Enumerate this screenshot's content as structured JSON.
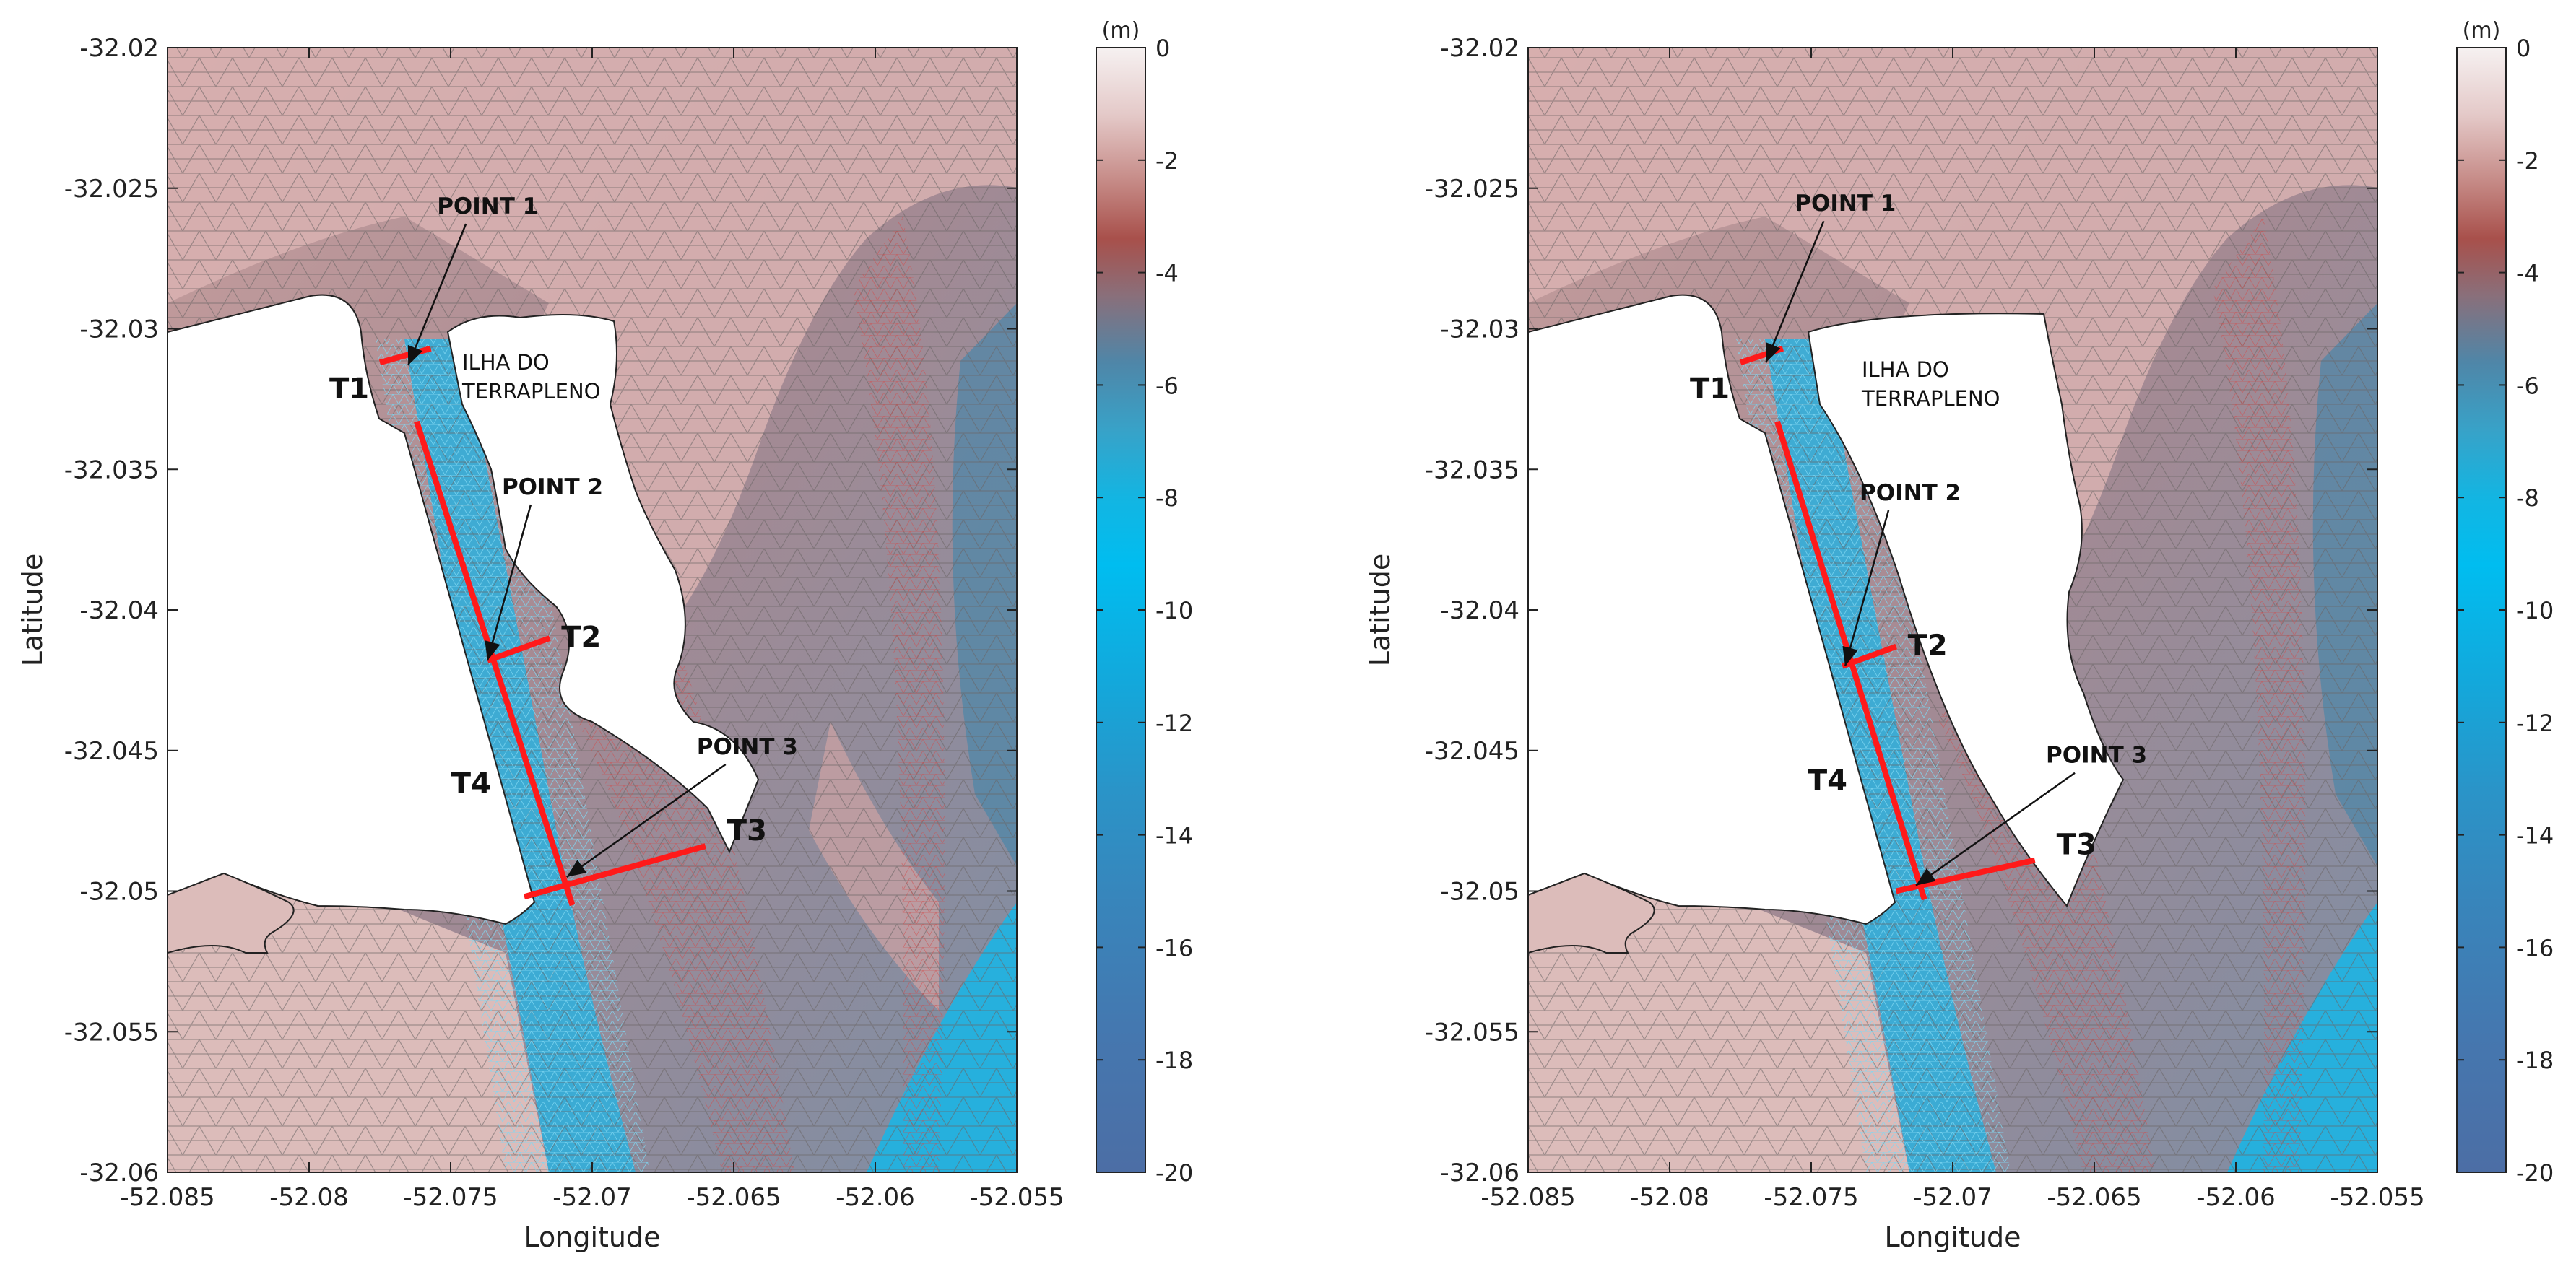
{
  "panels": [
    {
      "id": "left",
      "xlabel": "Longitude",
      "ylabel": "Latitude",
      "island_label": [
        "ILHA DO",
        "TERRAPLENO"
      ],
      "points": [
        {
          "label": "POINT 1",
          "lon": -52.0765,
          "lat": -32.0313
        },
        {
          "label": "POINT 2",
          "lon": -52.0737,
          "lat": -32.0418
        },
        {
          "label": "POINT 3",
          "lon": -52.0709,
          "lat": -32.0495
        }
      ],
      "transects": [
        {
          "label": "T1",
          "lon": [
            -52.0775,
            -52.0757
          ],
          "lat": [
            -32.0312,
            -32.0307
          ]
        },
        {
          "label": "T2",
          "lon": [
            -52.0737,
            -52.0715
          ],
          "lat": [
            -32.0418,
            -32.041
          ]
        },
        {
          "label": "T3",
          "lon": [
            -52.0724,
            -52.066
          ],
          "lat": [
            -32.0502,
            -32.0484
          ]
        },
        {
          "label": "T4",
          "lon": [
            -52.0762,
            -52.0707
          ],
          "lat": [
            -32.0333,
            -32.0505
          ]
        }
      ]
    },
    {
      "id": "right",
      "xlabel": "Longitude",
      "ylabel": "Latitude",
      "island_label": [
        "ILHA DO",
        "TERRAPLENO"
      ],
      "points": [
        {
          "label": "POINT 1",
          "lon": -52.0766,
          "lat": -32.0312
        },
        {
          "label": "POINT 2",
          "lon": -52.0738,
          "lat": -32.042
        },
        {
          "label": "POINT 3",
          "lon": -52.0713,
          "lat": -32.0498
        }
      ],
      "transects": [
        {
          "label": "T1",
          "lon": [
            -52.0775,
            -52.076
          ],
          "lat": [
            -32.0312,
            -32.0307
          ]
        },
        {
          "label": "T2",
          "lon": [
            -52.0739,
            -52.072
          ],
          "lat": [
            -32.042,
            -32.0413
          ]
        },
        {
          "label": "T3",
          "lon": [
            -52.072,
            -52.0671
          ],
          "lat": [
            -32.05,
            -32.0489
          ]
        },
        {
          "label": "T4",
          "lon": [
            -52.0762,
            -52.071
          ],
          "lat": [
            -32.0333,
            -32.0503
          ]
        }
      ]
    }
  ],
  "axes": {
    "xlim": [
      -52.085,
      -52.055
    ],
    "ylim": [
      -32.06,
      -32.02
    ],
    "xticks": [
      "-52.085",
      "-52.08",
      "-52.075",
      "-52.07",
      "-52.065",
      "-52.06",
      "-52.055"
    ],
    "yticks": [
      "-32.02",
      "-32.025",
      "-32.03",
      "-32.035",
      "-32.04",
      "-32.045",
      "-32.05",
      "-32.055",
      "-32.06"
    ]
  },
  "colorbar": {
    "unit": "(m)",
    "ticks": [
      "0",
      "-2",
      "-4",
      "-6",
      "-8",
      "-10",
      "-12",
      "-14",
      "-16",
      "-18",
      "-20"
    ],
    "range": [
      -20,
      0
    ],
    "colors": [
      "#f4eeee",
      "#d9b5b3",
      "#b05a55",
      "#4a87ad",
      "#1ab0d6",
      "#00b8ea",
      "#2a9cd0",
      "#3a80b5",
      "#4a6fa5"
    ]
  }
}
